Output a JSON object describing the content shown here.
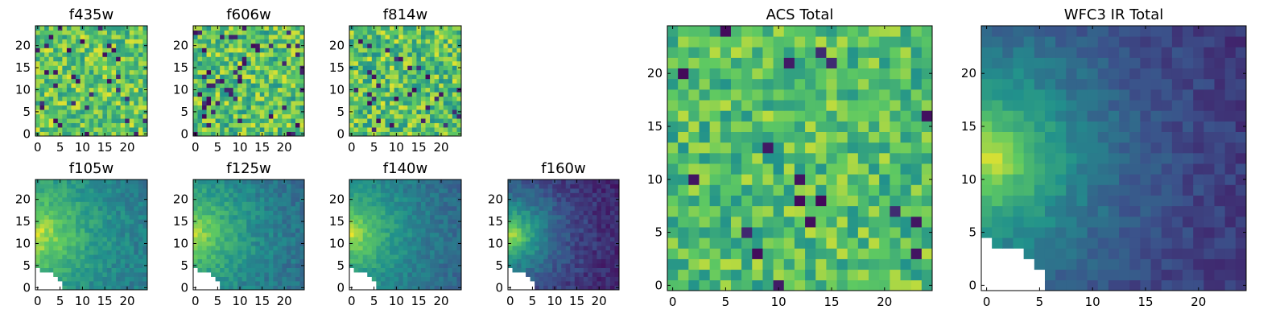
{
  "figure": {
    "colormap": "viridis",
    "colormap_stops": [
      "#440154",
      "#3b528b",
      "#21918c",
      "#5ec962",
      "#fde725"
    ],
    "masked_color": "#ffffff",
    "frame_color": "#000000"
  },
  "chart_data": [
    {
      "type": "heatmap",
      "title": "f435w",
      "grid": [
        25,
        25
      ],
      "xlim": [
        0,
        24
      ],
      "ylim": [
        0,
        24
      ],
      "xticks": [
        "0",
        "5",
        "10",
        "15",
        "20"
      ],
      "yticks": [
        "0",
        "5",
        "10",
        "15",
        "20"
      ],
      "pattern": "noise",
      "mean": 0.74,
      "spread": 0.22,
      "dark_fraction": 0.05,
      "mask": "none"
    },
    {
      "type": "heatmap",
      "title": "f606w",
      "grid": [
        25,
        25
      ],
      "xlim": [
        0,
        24
      ],
      "ylim": [
        0,
        24
      ],
      "xticks": [
        "0",
        "5",
        "10",
        "15",
        "20"
      ],
      "yticks": [
        "0",
        "5",
        "10",
        "15",
        "20"
      ],
      "pattern": "noise",
      "mean": 0.72,
      "spread": 0.24,
      "dark_fraction": 0.05,
      "mask": "none"
    },
    {
      "type": "heatmap",
      "title": "f814w",
      "grid": [
        25,
        25
      ],
      "xlim": [
        0,
        24
      ],
      "ylim": [
        0,
        24
      ],
      "xticks": [
        "0",
        "5",
        "10",
        "15",
        "20"
      ],
      "yticks": [
        "0",
        "5",
        "10",
        "15",
        "20"
      ],
      "pattern": "noise",
      "mean": 0.72,
      "spread": 0.24,
      "dark_fraction": 0.05,
      "mask": "none"
    },
    {
      "type": "heatmap",
      "title": "ACS Total",
      "grid": [
        25,
        25
      ],
      "xlim": [
        0,
        24
      ],
      "ylim": [
        0,
        24
      ],
      "xticks": [
        "0",
        "5",
        "10",
        "15",
        "20"
      ],
      "yticks": [
        "0",
        "5",
        "10",
        "15",
        "20"
      ],
      "pattern": "noise",
      "mean": 0.7,
      "spread": 0.2,
      "dark_fraction": 0.03,
      "mask": "none"
    },
    {
      "type": "heatmap",
      "title": "f105w",
      "grid": [
        25,
        25
      ],
      "xlim": [
        0,
        24
      ],
      "ylim": [
        0,
        24
      ],
      "xticks": [
        "0",
        "5",
        "10",
        "15",
        "20"
      ],
      "yticks": [
        "0",
        "5",
        "10",
        "15",
        "20"
      ],
      "pattern": "gradient",
      "peak": [
        0,
        12
      ],
      "peak_value": 0.95,
      "floor_value": 0.35,
      "falloff": 26,
      "spread": 0.08,
      "mask": "corner"
    },
    {
      "type": "heatmap",
      "title": "f125w",
      "grid": [
        25,
        25
      ],
      "xlim": [
        0,
        24
      ],
      "ylim": [
        0,
        24
      ],
      "xticks": [
        "0",
        "5",
        "10",
        "15",
        "20"
      ],
      "yticks": [
        "0",
        "5",
        "10",
        "15",
        "20"
      ],
      "pattern": "gradient",
      "peak": [
        0,
        12
      ],
      "peak_value": 0.9,
      "floor_value": 0.3,
      "falloff": 26,
      "spread": 0.08,
      "mask": "corner"
    },
    {
      "type": "heatmap",
      "title": "f140w",
      "grid": [
        25,
        25
      ],
      "xlim": [
        0,
        24
      ],
      "ylim": [
        0,
        24
      ],
      "xticks": [
        "0",
        "5",
        "10",
        "15",
        "20"
      ],
      "yticks": [
        "0",
        "5",
        "10",
        "15",
        "20"
      ],
      "pattern": "gradient",
      "peak": [
        0,
        12
      ],
      "peak_value": 0.92,
      "floor_value": 0.28,
      "falloff": 24,
      "spread": 0.07,
      "mask": "corner"
    },
    {
      "type": "heatmap",
      "title": "f160w",
      "grid": [
        25,
        25
      ],
      "xlim": [
        0,
        24
      ],
      "ylim": [
        0,
        24
      ],
      "xticks": [
        "0",
        "5",
        "10",
        "15",
        "20"
      ],
      "yticks": [
        "0",
        "5",
        "10",
        "15",
        "20"
      ],
      "pattern": "gradient",
      "peak": [
        0,
        12
      ],
      "peak_value": 0.95,
      "floor_value": 0.08,
      "falloff": 18,
      "spread": 0.07,
      "mask": "corner"
    },
    {
      "type": "heatmap",
      "title": "WFC3 IR Total",
      "grid": [
        25,
        25
      ],
      "xlim": [
        0,
        24
      ],
      "ylim": [
        0,
        24
      ],
      "xticks": [
        "0",
        "5",
        "10",
        "15",
        "20"
      ],
      "yticks": [
        "0",
        "5",
        "10",
        "15",
        "20"
      ],
      "pattern": "gradient",
      "peak": [
        0,
        12
      ],
      "peak_value": 0.97,
      "floor_value": 0.12,
      "falloff": 20,
      "spread": 0.06,
      "mask": "corner"
    }
  ]
}
